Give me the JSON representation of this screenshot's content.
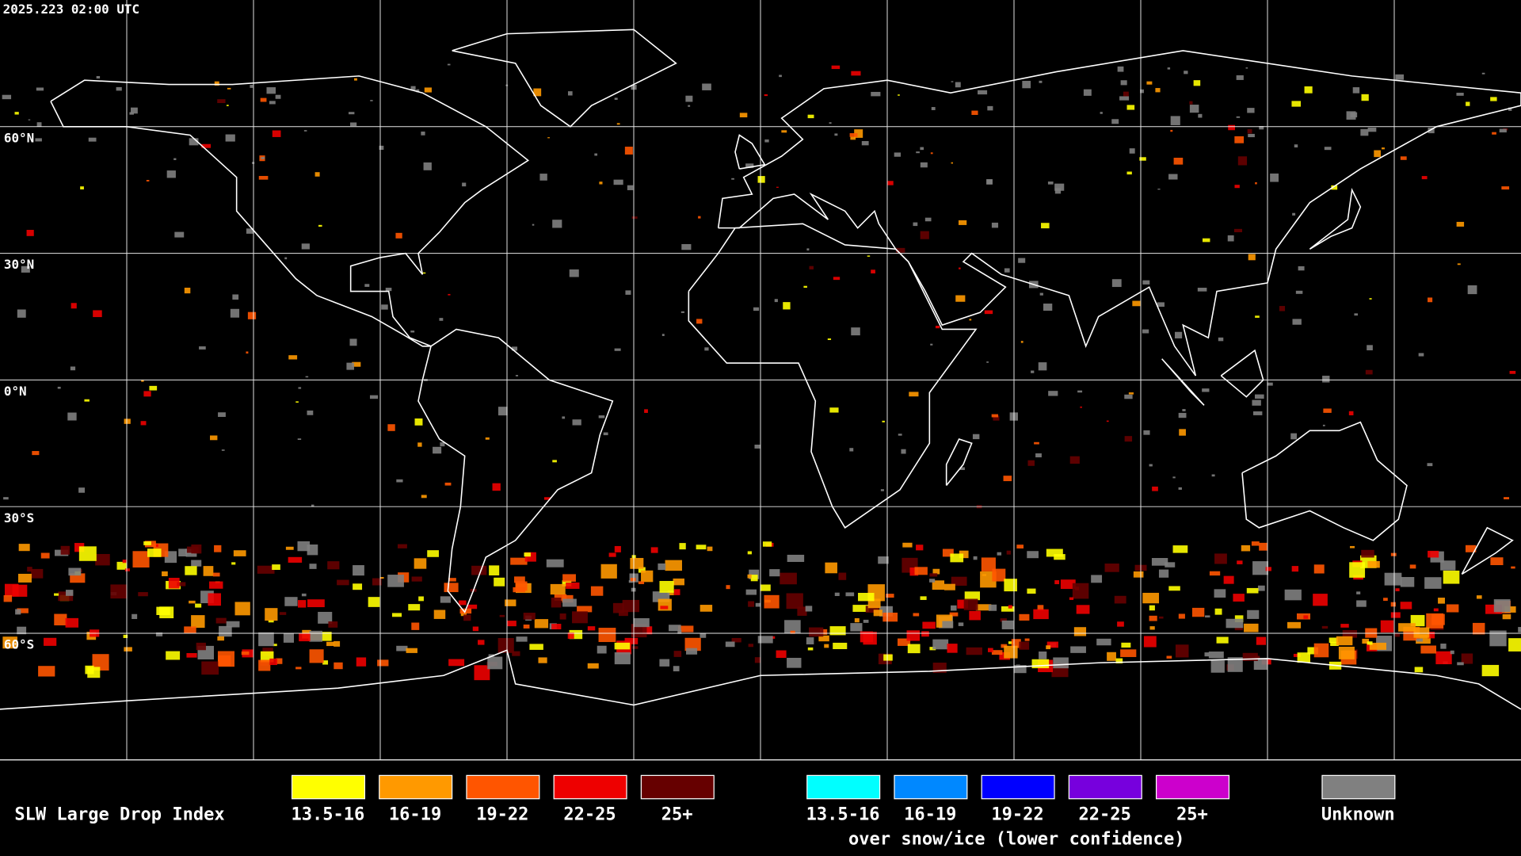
{
  "timestamp": "2025.223 02:00 UTC",
  "lat_labels": [
    "60°N",
    "30°N",
    "0°N",
    "30°S",
    "60°S"
  ],
  "legend": {
    "title": "SLW Large Drop Index",
    "items": [
      {
        "label": "13.5-16",
        "color": "#ffff00"
      },
      {
        "label": "16-19",
        "color": "#ff9900"
      },
      {
        "label": "19-22",
        "color": "#ff5500"
      },
      {
        "label": "22-25",
        "color": "#ee0000"
      },
      {
        "label": "25+",
        "color": "#660000"
      }
    ],
    "snow_ice_items": [
      {
        "label": "13.5-16",
        "color": "#00ffff"
      },
      {
        "label": "16-19",
        "color": "#0088ff"
      },
      {
        "label": "19-22",
        "color": "#0000ff"
      },
      {
        "label": "22-25",
        "color": "#7700dd"
      },
      {
        "label": "25+",
        "color": "#cc00cc"
      }
    ],
    "snow_ice_caption": "over snow/ice (lower confidence)",
    "unknown": {
      "label": "Unknown",
      "color": "#808080"
    }
  }
}
